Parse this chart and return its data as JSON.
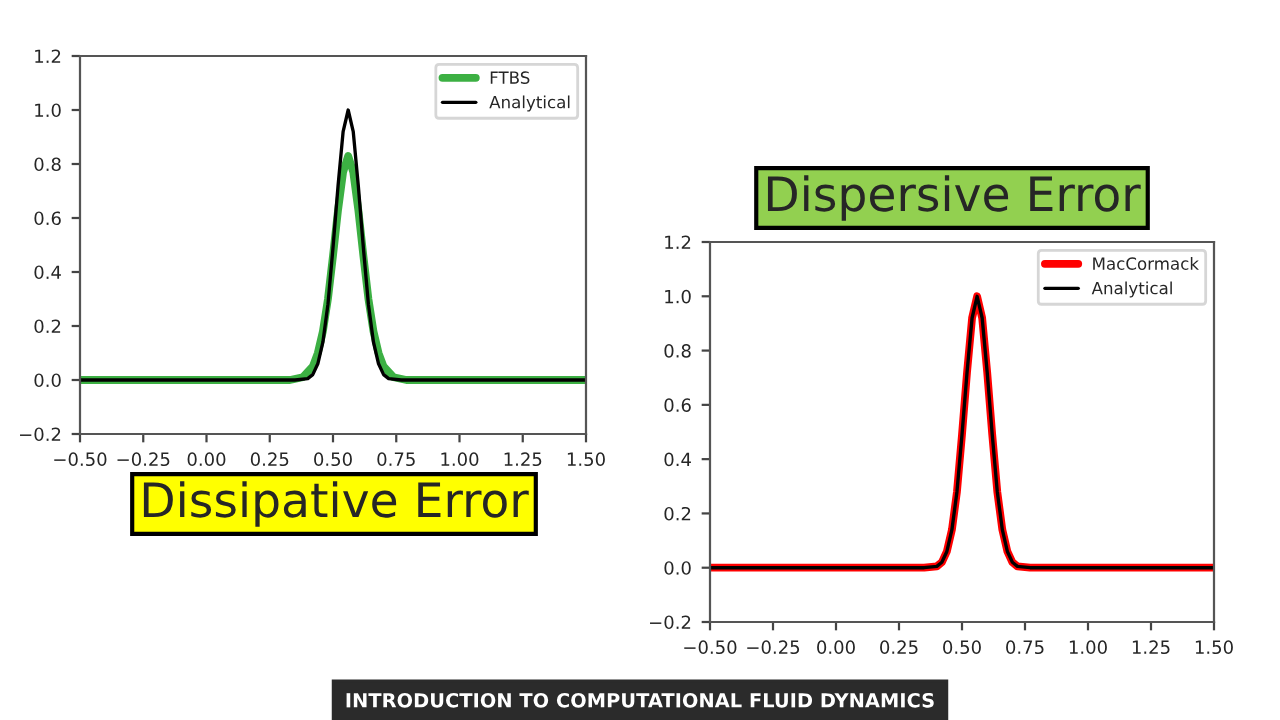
{
  "chart_data": [
    {
      "type": "line",
      "title": "Dissipative Error",
      "xlim": [
        -0.5,
        1.5
      ],
      "ylim": [
        -0.2,
        1.2
      ],
      "xticks": [
        {
          "value": -0.5,
          "label": "−0.50"
        },
        {
          "value": -0.25,
          "label": "−0.25"
        },
        {
          "value": 0,
          "label": "0.00"
        },
        {
          "value": 0.25,
          "label": "0.25"
        },
        {
          "value": 0.5,
          "label": "0.50"
        },
        {
          "value": 0.75,
          "label": "0.75"
        },
        {
          "value": 1,
          "label": "1.00"
        },
        {
          "value": 1.25,
          "label": "1.25"
        },
        {
          "value": 1.5,
          "label": "1.50"
        }
      ],
      "yticks": [
        {
          "value": -0.2,
          "label": "−0.2"
        },
        {
          "value": 0,
          "label": "0.0"
        },
        {
          "value": 0.2,
          "label": "0.2"
        },
        {
          "value": 0.4,
          "label": "0.4"
        },
        {
          "value": 0.6,
          "label": "0.6"
        },
        {
          "value": 0.8,
          "label": "0.8"
        },
        {
          "value": 1,
          "label": "1.0"
        },
        {
          "value": 1.2,
          "label": "1.2"
        }
      ],
      "legend": "top right",
      "grid": false,
      "annotations": [
        "INTRODUCTION TO COMPUTATIONAL FLUID DYNAMICS"
      ],
      "series": [
        {
          "name": "FTBS",
          "color": "#3cb043",
          "x": [
            -0.5,
            0.33,
            0.38,
            0.42,
            0.44,
            0.46,
            0.48,
            0.5,
            0.52,
            0.54,
            0.56,
            0.58,
            0.6,
            0.62,
            0.64,
            0.66,
            0.68,
            0.7,
            0.74,
            0.79,
            1.5
          ],
          "values": [
            0,
            0,
            0.01,
            0.05,
            0.1,
            0.18,
            0.3,
            0.46,
            0.63,
            0.77,
            0.83,
            0.77,
            0.63,
            0.46,
            0.3,
            0.18,
            0.1,
            0.05,
            0.01,
            0,
            0
          ]
        },
        {
          "name": "Analytical",
          "color": "#000000",
          "x": [
            -0.5,
            0.35,
            0.4,
            0.42,
            0.44,
            0.46,
            0.48,
            0.5,
            0.52,
            0.54,
            0.56,
            0.58,
            0.6,
            0.62,
            0.64,
            0.66,
            0.68,
            0.7,
            0.72,
            0.77,
            1.5
          ],
          "values": [
            0,
            0,
            0.005,
            0.02,
            0.06,
            0.14,
            0.28,
            0.49,
            0.72,
            0.92,
            1.0,
            0.92,
            0.72,
            0.49,
            0.28,
            0.14,
            0.06,
            0.02,
            0.005,
            0,
            0
          ]
        }
      ]
    },
    {
      "type": "line",
      "title": "Dispersive Error",
      "xlim": [
        -0.5,
        1.5
      ],
      "ylim": [
        -0.2,
        1.2
      ],
      "xticks": [
        {
          "value": -0.5,
          "label": "−0.50"
        },
        {
          "value": -0.25,
          "label": "−0.25"
        },
        {
          "value": 0,
          "label": "0.00"
        },
        {
          "value": 0.25,
          "label": "0.25"
        },
        {
          "value": 0.5,
          "label": "0.50"
        },
        {
          "value": 0.75,
          "label": "0.75"
        },
        {
          "value": 1,
          "label": "1.00"
        },
        {
          "value": 1.25,
          "label": "1.25"
        },
        {
          "value": 1.5,
          "label": "1.50"
        }
      ],
      "yticks": [
        {
          "value": -0.2,
          "label": "−0.2"
        },
        {
          "value": 0,
          "label": "0.0"
        },
        {
          "value": 0.2,
          "label": "0.2"
        },
        {
          "value": 0.4,
          "label": "0.4"
        },
        {
          "value": 0.6,
          "label": "0.6"
        },
        {
          "value": 0.8,
          "label": "0.8"
        },
        {
          "value": 1,
          "label": "1.0"
        },
        {
          "value": 1.2,
          "label": "1.2"
        }
      ],
      "legend": "top right",
      "grid": false,
      "series": [
        {
          "name": "MacCormack",
          "color": "#ff0000",
          "x": [
            -0.5,
            0.35,
            0.4,
            0.42,
            0.44,
            0.46,
            0.48,
            0.5,
            0.52,
            0.54,
            0.56,
            0.58,
            0.6,
            0.62,
            0.64,
            0.66,
            0.68,
            0.7,
            0.72,
            0.77,
            1.5
          ],
          "values": [
            0,
            0,
            0.005,
            0.02,
            0.06,
            0.14,
            0.28,
            0.49,
            0.72,
            0.92,
            1.0,
            0.92,
            0.72,
            0.49,
            0.28,
            0.14,
            0.06,
            0.02,
            0.005,
            0,
            0
          ]
        },
        {
          "name": "Analytical",
          "color": "#000000",
          "x": [
            -0.5,
            0.35,
            0.4,
            0.42,
            0.44,
            0.46,
            0.48,
            0.5,
            0.52,
            0.54,
            0.56,
            0.58,
            0.6,
            0.62,
            0.64,
            0.66,
            0.68,
            0.7,
            0.72,
            0.77,
            1.5
          ],
          "values": [
            0,
            0,
            0.005,
            0.02,
            0.06,
            0.14,
            0.28,
            0.49,
            0.72,
            0.92,
            1.0,
            0.92,
            0.72,
            0.49,
            0.28,
            0.14,
            0.06,
            0.02,
            0.005,
            0,
            0
          ]
        }
      ]
    }
  ]
}
